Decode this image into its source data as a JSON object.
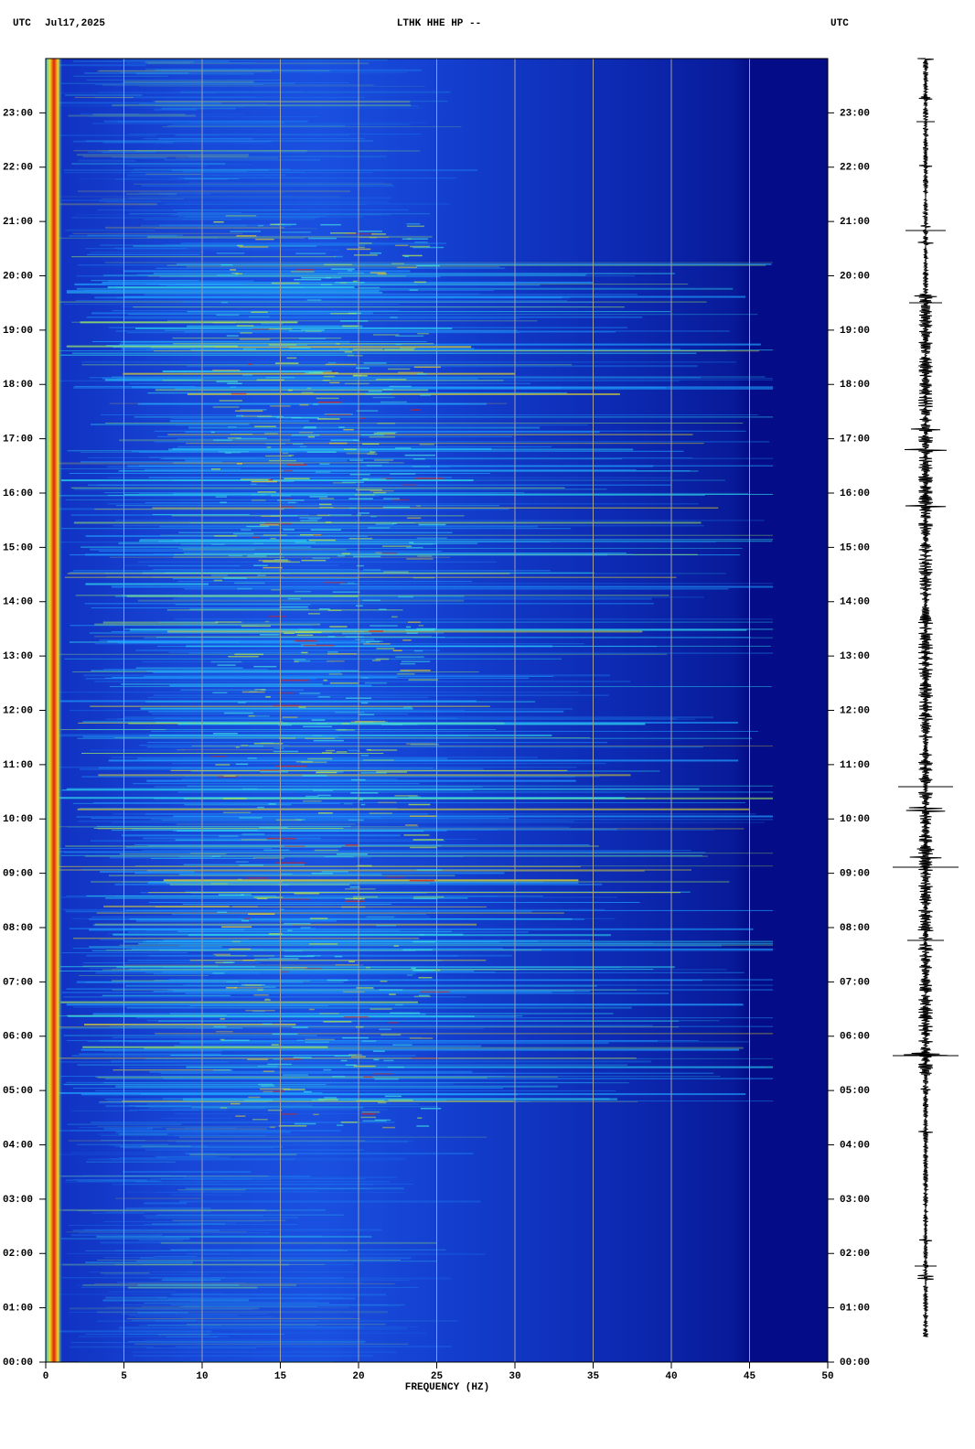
{
  "chart_data": {
    "type": "spectrogram",
    "title": "LTHK HHE HP --",
    "timezone_left": "UTC",
    "date": "Jul17,2025",
    "timezone_right": "UTC",
    "xlabel": "FREQUENCY (HZ)",
    "xlim": [
      0,
      50
    ],
    "xticks": [
      0,
      5,
      10,
      15,
      20,
      25,
      30,
      35,
      40,
      45,
      50
    ],
    "ylim": [
      0,
      24
    ],
    "yticks": [
      {
        "value": 0,
        "label": "00:00"
      },
      {
        "value": 1,
        "label": "01:00"
      },
      {
        "value": 2,
        "label": "02:00"
      },
      {
        "value": 3,
        "label": "03:00"
      },
      {
        "value": 4,
        "label": "04:00"
      },
      {
        "value": 5,
        "label": "05:00"
      },
      {
        "value": 6,
        "label": "06:00"
      },
      {
        "value": 7,
        "label": "07:00"
      },
      {
        "value": 8,
        "label": "08:00"
      },
      {
        "value": 9,
        "label": "09:00"
      },
      {
        "value": 10,
        "label": "10:00"
      },
      {
        "value": 11,
        "label": "11:00"
      },
      {
        "value": 12,
        "label": "12:00"
      },
      {
        "value": 13,
        "label": "13:00"
      },
      {
        "value": 14,
        "label": "14:00"
      },
      {
        "value": 15,
        "label": "15:00"
      },
      {
        "value": 16,
        "label": "16:00"
      },
      {
        "value": 17,
        "label": "17:00"
      },
      {
        "value": 18,
        "label": "18:00"
      },
      {
        "value": 19,
        "label": "19:00"
      },
      {
        "value": 20,
        "label": "20:00"
      },
      {
        "value": 21,
        "label": "21:00"
      },
      {
        "value": 22,
        "label": "22:00"
      },
      {
        "value": 23,
        "label": "23:00"
      }
    ],
    "grid": true
  }
}
